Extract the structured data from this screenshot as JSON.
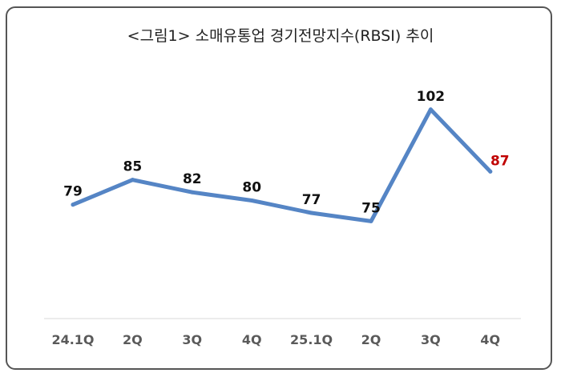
{
  "chart_data": {
    "type": "line",
    "title": "<그림1> 소매유통업 경기전망지수(RBSI) 추이",
    "categories": [
      "24.1Q",
      "2Q",
      "3Q",
      "4Q",
      "25.1Q",
      "2Q",
      "3Q",
      "4Q"
    ],
    "series": [
      {
        "values": [
          79,
          85,
          82,
          80,
          77,
          75,
          102,
          87
        ]
      }
    ],
    "data_labels": [
      "79",
      "85",
      "82",
      "80",
      "77",
      "75",
      "102",
      "87"
    ],
    "line_color": "#5585c5",
    "label_color": "#111111",
    "highlight_color": "#c00000",
    "highlight_index": 7,
    "grid": false,
    "legend": "none"
  }
}
